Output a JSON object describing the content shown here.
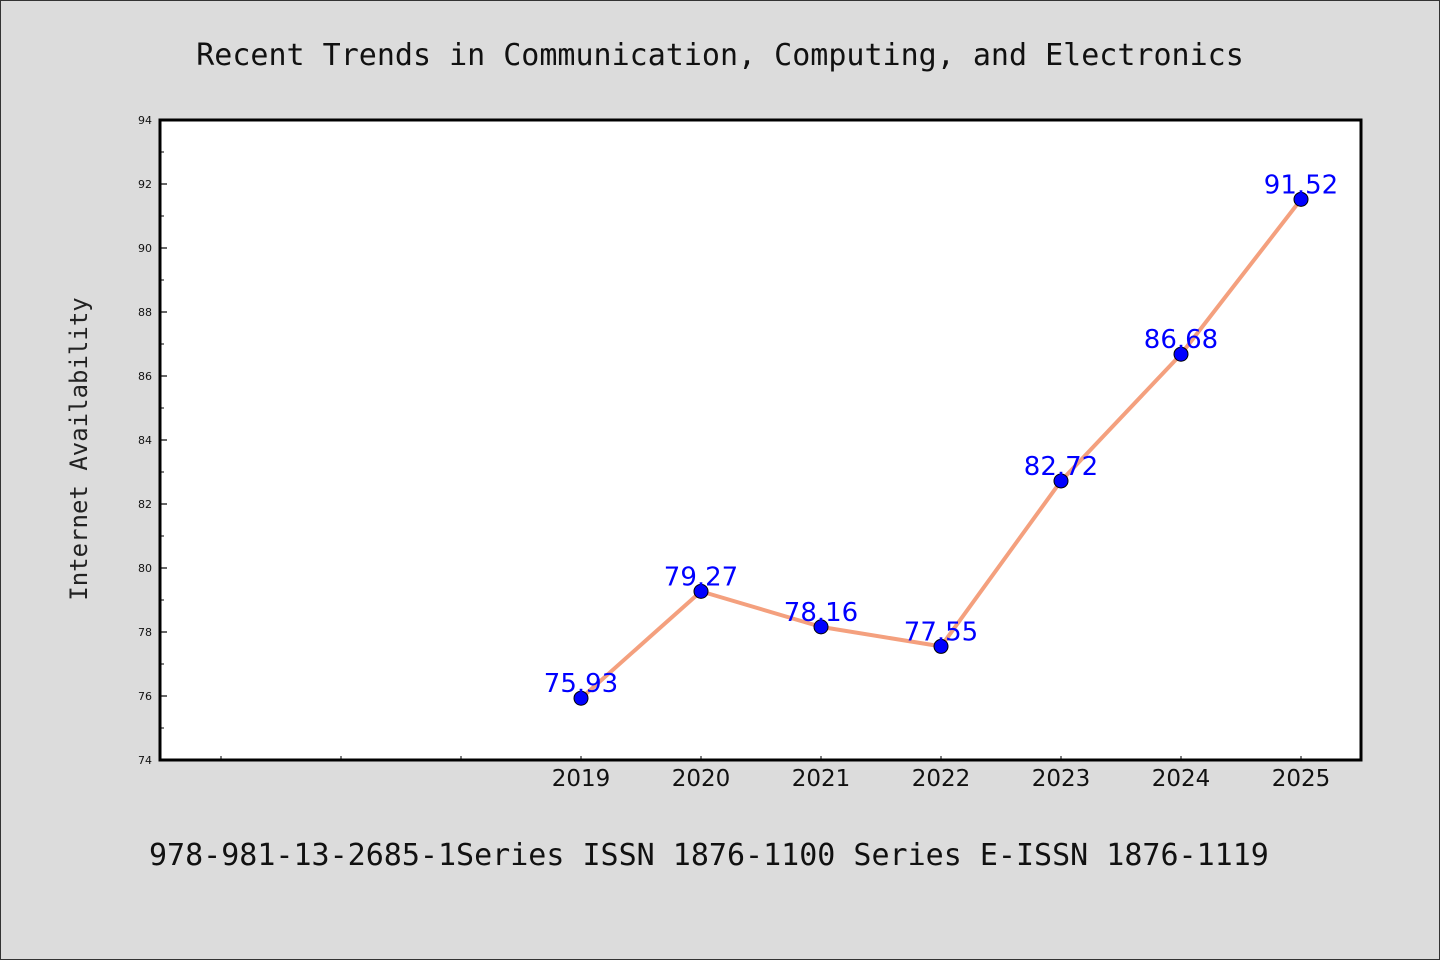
{
  "chart_data": {
    "type": "line",
    "title": "Recent Trends in Communication, Computing, and Electronics",
    "ylabel": "Internet Availability",
    "xlabel": "",
    "footer": "978-981-13-2685-1Series ISSN 1876-1100 Series E-ISSN 1876-1119",
    "categories": [
      "2019",
      "2020",
      "2021",
      "2022",
      "2023",
      "2024",
      "2025"
    ],
    "series": [
      {
        "values": [
          75.93,
          79.27,
          78.16,
          77.55,
          82.72,
          86.68,
          91.52
        ],
        "labels": [
          "75.93",
          "79.27",
          "78.16",
          "77.55",
          "82.72",
          "86.68",
          "91.52"
        ]
      }
    ],
    "ylim": [
      74,
      94
    ],
    "yticks": [
      "74",
      "76",
      "78",
      "80",
      "82",
      "84",
      "86",
      "88",
      "90",
      "92",
      "94"
    ],
    "grid": false,
    "line_color": "#f4a07e",
    "marker_color": "#0000ff",
    "label_color": "#0000ff"
  }
}
